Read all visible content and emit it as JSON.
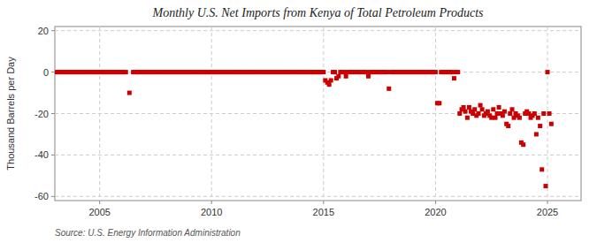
{
  "chart_data": {
    "type": "scatter",
    "title": "Monthly U.S. Net Imports from Kenya of Total Petroleum Products",
    "y_label": "Thousand Barrels per Day",
    "annotations": [
      "Source: U.S. Energy Information Administration"
    ],
    "color": "#cc0000",
    "marker": "square",
    "grid": true,
    "xlim": [
      2003.0,
      2026.5
    ],
    "ylim": [
      -62,
      22
    ],
    "xticks": [
      2005,
      2010,
      2015,
      2020,
      2025
    ],
    "yticks": [
      -60,
      -40,
      -20,
      0,
      20
    ],
    "x": [
      2003.08,
      2003.17,
      2003.25,
      2003.33,
      2003.42,
      2003.5,
      2003.58,
      2003.67,
      2003.75,
      2003.83,
      2003.92,
      2004.0,
      2004.08,
      2004.17,
      2004.25,
      2004.33,
      2004.42,
      2004.5,
      2004.58,
      2004.67,
      2004.75,
      2004.83,
      2004.92,
      2005.0,
      2005.08,
      2005.17,
      2005.25,
      2005.33,
      2005.42,
      2005.5,
      2005.58,
      2005.67,
      2005.75,
      2005.83,
      2005.92,
      2006.0,
      2006.08,
      2006.17,
      2006.33,
      2006.5,
      2006.58,
      2006.67,
      2006.75,
      2006.83,
      2006.92,
      2007.0,
      2007.08,
      2007.17,
      2007.25,
      2007.33,
      2007.42,
      2007.5,
      2007.58,
      2007.67,
      2007.75,
      2007.83,
      2007.92,
      2008.0,
      2008.08,
      2008.17,
      2008.25,
      2008.33,
      2008.42,
      2008.5,
      2008.58,
      2008.67,
      2008.75,
      2008.83,
      2008.92,
      2009.0,
      2009.08,
      2009.17,
      2009.25,
      2009.33,
      2009.42,
      2009.5,
      2009.58,
      2009.67,
      2009.75,
      2009.83,
      2009.92,
      2010.0,
      2010.08,
      2010.17,
      2010.25,
      2010.33,
      2010.42,
      2010.5,
      2010.58,
      2010.67,
      2010.75,
      2010.83,
      2010.92,
      2011.0,
      2011.08,
      2011.17,
      2011.25,
      2011.33,
      2011.42,
      2011.5,
      2011.58,
      2011.67,
      2011.75,
      2011.83,
      2011.92,
      2012.0,
      2012.08,
      2012.17,
      2012.25,
      2012.33,
      2012.42,
      2012.5,
      2012.58,
      2012.67,
      2012.75,
      2012.83,
      2012.92,
      2013.0,
      2013.08,
      2013.17,
      2013.25,
      2013.33,
      2013.42,
      2013.5,
      2013.58,
      2013.67,
      2013.75,
      2013.83,
      2013.92,
      2014.0,
      2014.08,
      2014.17,
      2014.25,
      2014.33,
      2014.42,
      2014.5,
      2014.58,
      2014.67,
      2014.75,
      2014.83,
      2014.92,
      2015.0,
      2015.08,
      2015.17,
      2015.25,
      2015.33,
      2015.42,
      2015.5,
      2015.58,
      2015.67,
      2015.75,
      2015.83,
      2015.92,
      2016.0,
      2016.08,
      2016.17,
      2016.25,
      2016.33,
      2016.42,
      2016.5,
      2016.58,
      2016.67,
      2016.75,
      2016.83,
      2016.92,
      2017.0,
      2017.08,
      2017.17,
      2017.25,
      2017.33,
      2017.42,
      2017.5,
      2017.58,
      2017.67,
      2017.75,
      2017.83,
      2017.92,
      2018.0,
      2018.08,
      2018.17,
      2018.25,
      2018.33,
      2018.42,
      2018.5,
      2018.58,
      2018.67,
      2018.75,
      2018.83,
      2018.92,
      2019.0,
      2019.08,
      2019.17,
      2019.25,
      2019.33,
      2019.42,
      2019.5,
      2019.58,
      2019.67,
      2019.75,
      2019.83,
      2019.92,
      2020.0,
      2020.08,
      2020.17,
      2020.25,
      2020.33,
      2020.42,
      2020.5,
      2020.58,
      2020.67,
      2020.75,
      2020.83,
      2020.92,
      2021.0,
      2021.08,
      2021.17,
      2021.25,
      2021.33,
      2021.42,
      2021.5,
      2021.58,
      2021.67,
      2021.75,
      2021.83,
      2021.92,
      2022.0,
      2022.08,
      2022.17,
      2022.25,
      2022.33,
      2022.42,
      2022.5,
      2022.58,
      2022.67,
      2022.75,
      2022.83,
      2022.92,
      2023.0,
      2023.08,
      2023.17,
      2023.25,
      2023.33,
      2023.42,
      2023.5,
      2023.58,
      2023.67,
      2023.75,
      2023.83,
      2023.92,
      2024.0,
      2024.08,
      2024.17,
      2024.25,
      2024.33,
      2024.42,
      2024.5,
      2024.58,
      2024.67,
      2024.75,
      2024.83,
      2024.92,
      2025.0,
      2025.08,
      2025.17
    ],
    "values": [
      0,
      0,
      0,
      0,
      0,
      0,
      0,
      0,
      0,
      0,
      0,
      0,
      0,
      0,
      0,
      0,
      0,
      0,
      0,
      0,
      0,
      0,
      0,
      0,
      0,
      0,
      0,
      0,
      0,
      0,
      0,
      0,
      0,
      0,
      0,
      0,
      0,
      0,
      -10,
      0,
      0,
      0,
      0,
      0,
      0,
      0,
      0,
      0,
      0,
      0,
      0,
      0,
      0,
      0,
      0,
      0,
      0,
      0,
      0,
      0,
      0,
      0,
      0,
      0,
      0,
      0,
      0,
      0,
      0,
      0,
      0,
      0,
      0,
      0,
      0,
      0,
      0,
      0,
      0,
      0,
      0,
      0,
      0,
      0,
      0,
      0,
      0,
      0,
      0,
      0,
      0,
      0,
      0,
      0,
      0,
      0,
      0,
      0,
      0,
      0,
      0,
      0,
      0,
      0,
      0,
      0,
      0,
      0,
      0,
      0,
      0,
      0,
      0,
      0,
      0,
      0,
      0,
      0,
      0,
      0,
      0,
      0,
      0,
      0,
      0,
      0,
      0,
      0,
      0,
      0,
      0,
      0,
      0,
      0,
      0,
      0,
      0,
      0,
      0,
      0,
      0,
      0,
      -4,
      -5,
      -6,
      -4,
      0,
      0,
      -3,
      -2,
      0,
      0,
      0,
      -2,
      0,
      0,
      0,
      0,
      0,
      0,
      0,
      0,
      0,
      0,
      0,
      -2,
      0,
      0,
      0,
      0,
      0,
      0,
      0,
      0,
      0,
      0,
      -8,
      0,
      0,
      0,
      0,
      0,
      0,
      0,
      0,
      0,
      0,
      0,
      0,
      0,
      0,
      0,
      0,
      0,
      0,
      0,
      0,
      0,
      0,
      0,
      0,
      0,
      -15,
      -15,
      0,
      0,
      0,
      0,
      0,
      0,
      0,
      -3,
      0,
      0,
      -20,
      -18,
      -17,
      -19,
      -22,
      -17,
      -19,
      -20,
      -18,
      -21,
      -20,
      -16,
      -18,
      -21,
      -20,
      -19,
      -21,
      -22,
      -18,
      -22,
      -20,
      -17,
      -20,
      -21,
      -19,
      -25,
      -26,
      -20,
      -18,
      -22,
      -20,
      -21,
      -22,
      -34,
      -35,
      -20,
      -19,
      -20,
      -22,
      -21,
      -20,
      -30,
      -22,
      -26,
      -47,
      -20,
      -55,
      0,
      -20,
      -25
    ]
  }
}
